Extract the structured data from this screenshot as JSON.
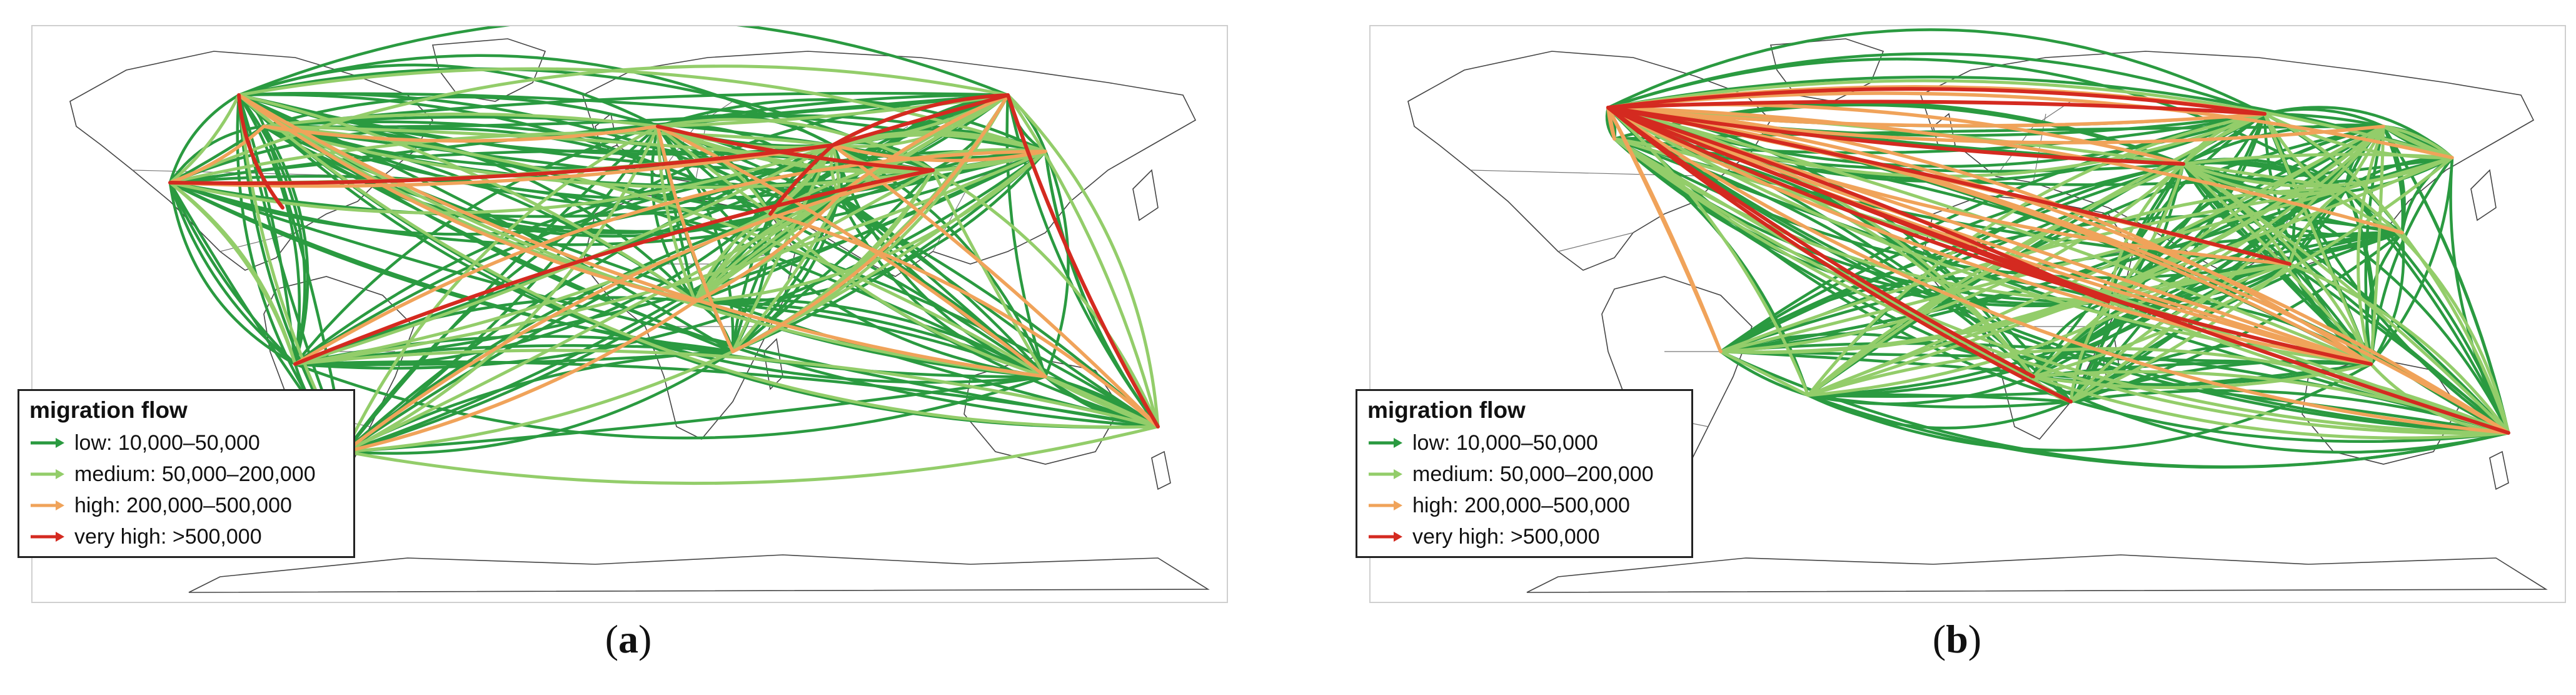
{
  "colors": {
    "low": "#2a9a40",
    "medium": "#93cd6a",
    "high": "#f0a35a",
    "very_high": "#d42a20"
  },
  "legend": {
    "title": "migration flow",
    "items": [
      {
        "level": "low",
        "label": "low:  10,000–50,000"
      },
      {
        "level": "medium",
        "label": "medium:  50,000–200,000"
      },
      {
        "level": "high",
        "label": "high:  200,000–500,000"
      },
      {
        "level": "very_high",
        "label": "very high:  >500,000"
      }
    ]
  },
  "panels": [
    {
      "id": "a",
      "caption_open": "(",
      "caption_letter": "a",
      "caption_close": ")"
    },
    {
      "id": "b",
      "caption_open": "(",
      "caption_letter": "b",
      "caption_close": ")"
    }
  ]
}
